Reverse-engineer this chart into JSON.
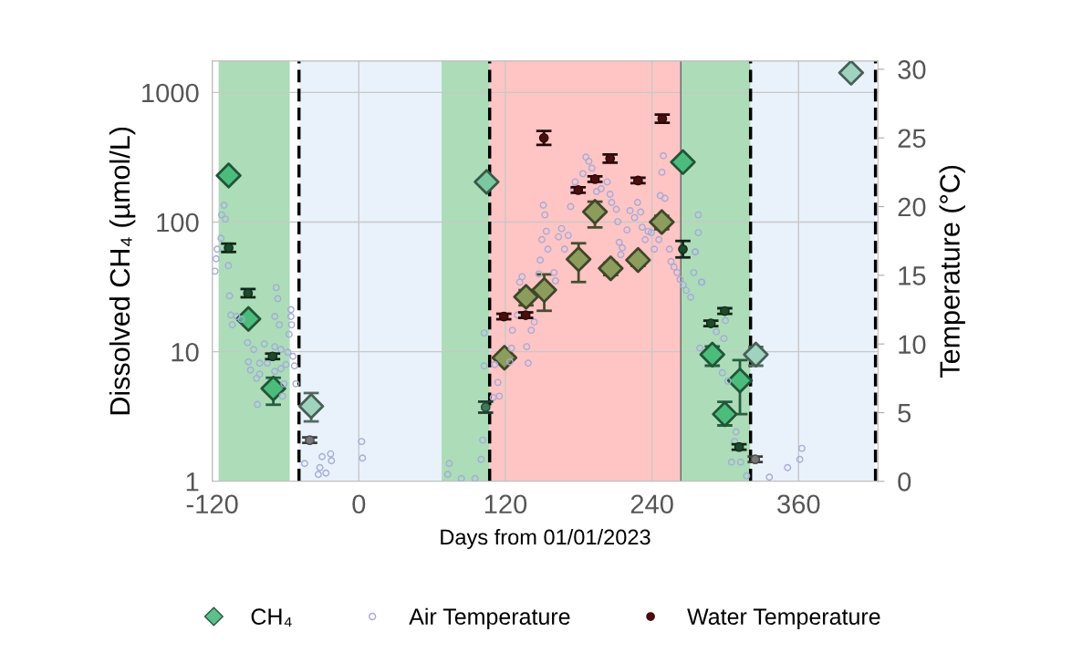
{
  "chart_data": {
    "type": "scatter",
    "xlabel": "Days from 01/01/2023",
    "ylabel": "Dissolved CH₄ (µmol/L)",
    "y2label": "Temperature (°C)",
    "xlim": [
      -120,
      425
    ],
    "xticks": [
      -120,
      0,
      120,
      240,
      360
    ],
    "ylim": [
      1,
      1750
    ],
    "yticks": [
      1,
      10,
      100,
      1000
    ],
    "log": "y",
    "y2lim": [
      0,
      30.6
    ],
    "y2ticks": [
      0,
      5,
      10,
      15,
      20,
      25,
      30
    ],
    "grid": true,
    "legend": "bottom",
    "bands": [
      {
        "axis": "x",
        "from": -114.8,
        "to": -56.6,
        "color": "#acdcb8"
      },
      {
        "axis": "x",
        "from": -49,
        "to": 107.1,
        "color": "#e9f1fb"
      },
      {
        "axis": "x",
        "from": 67.8,
        "to": 107.1,
        "color": "#acdcb8"
      },
      {
        "axis": "x",
        "from": 107.1,
        "to": 263.6,
        "color": "#ffc4c4"
      },
      {
        "axis": "x",
        "from": 263.6,
        "to": 320.7,
        "color": "#acdcb8"
      },
      {
        "axis": "x",
        "from": 320.7,
        "to": 423,
        "color": "#e9f1fb"
      }
    ],
    "ref_lines": [
      {
        "axis": "x",
        "value": -49,
        "color": "#000000",
        "line_style": "dashed"
      },
      {
        "axis": "x",
        "value": 107.1,
        "color": "#000000",
        "line_style": "dashed"
      },
      {
        "axis": "x",
        "value": 263.6,
        "color": "#666666",
        "line_style": "solid"
      },
      {
        "axis": "x",
        "value": 320.7,
        "color": "#000000",
        "line_style": "dashed"
      },
      {
        "axis": "x",
        "value": 423,
        "color": "#000000",
        "line_style": "dashed"
      }
    ],
    "series": [
      {
        "name": "Air Temperature",
        "axis": "y2",
        "marker": "circle",
        "color": "#a3acd9",
        "x": [
          -110.3,
          -112.3,
          -109.3,
          -112.8,
          -116,
          -116.8,
          -117.8,
          -106.8,
          -105.8,
          -104.8,
          -99.9,
          -96.2,
          -103.6,
          -67.6,
          -66.3,
          -68.8,
          -65.1,
          -55.6,
          -55.6,
          -55.1,
          -57.1,
          -91.1,
          -86.1,
          -77.4,
          -68.8,
          -63.8,
          -58.1,
          -90.4,
          -81.2,
          -75.0,
          -63.8,
          -59.6,
          -53.9,
          -52.7,
          -88.7,
          -81.2,
          -83.7,
          -68.8,
          -61.3,
          -51.5,
          -83,
          -62.5,
          2.3,
          3.0,
          -23.1,
          -30.1,
          -22.4,
          -31.9,
          -26.9,
          -33.2,
          -44.4,
          102.6,
          102.6,
          101.4,
          100.1,
          74.0,
          72.8,
          83.9,
          95.1,
          110,
          115,
          113.8,
          111.3,
          123.7,
          125,
          125.7,
          129.9,
          131.7,
          133.7,
          137.4,
          138.6,
          141.1,
          143.6,
          147.3,
          148.5,
          151,
          152.3,
          149.8,
          153.5,
          154.8,
          159.8,
          161,
          163.5,
          166,
          168.4,
          171.4,
          173.4,
          175.9,
          177.1,
          183.4,
          185.9,
          188.3,
          190.8,
          194.6,
          198.3,
          203.3,
          205.7,
          207,
          210.8,
          212,
          213.2,
          215.7,
          214.5,
          219.5,
          222,
          225.7,
          228.2,
          230.7,
          232,
          234.4,
          236.9,
          239.4,
          241.9,
          245.6,
          246.8,
          249.3,
          248.1,
          250.6,
          254.3,
          255.6,
          258,
          260.5,
          263,
          265.5,
          268,
          271.7,
          277.9,
          277.9,
          275.5,
          274.2,
          280.5,
          279.2,
          275.3,
          280.8,
          300.1,
          298.9,
          292.7,
          297.6,
          302.1,
          308.8,
          307.6,
          305.1,
          312.6,
          317.5,
          336.1,
          351,
          361,
          362.7
        ],
        "values": [
          20.1,
          19.4,
          19.1,
          17.7,
          16.9,
          16.2,
          15.3,
          15.7,
          13.5,
          12.1,
          12.0,
          11.8,
          11.4,
          14.1,
          13.3,
          12.0,
          11.4,
          12.5,
          12.0,
          11.4,
          10.7,
          10.1,
          9.6,
          10.0,
          9.8,
          9.6,
          9.4,
          8.7,
          8.6,
          8.6,
          8.2,
          8.5,
          9.1,
          8.4,
          8.1,
          7.8,
          7.5,
          8.0,
          7.1,
          7.1,
          5.6,
          6.2,
          2.9,
          1.7,
          2.0,
          1.8,
          1.5,
          1.0,
          0.6,
          0.5,
          1.3,
          8.4,
          10.8,
          3.0,
          1.6,
          1.3,
          0.5,
          0.2,
          0.2,
          6.1,
          6.2,
          7.2,
          8.5,
          8.7,
          9.7,
          11.0,
          12.1,
          14.5,
          14.9,
          9.8,
          8.6,
          11.0,
          11.6,
          15.1,
          16.1,
          20.1,
          19.4,
          17.6,
          18.2,
          16.9,
          15.2,
          14.6,
          17.8,
          18.4,
          16.9,
          17.9,
          20.0,
          21.3,
          21.8,
          22.4,
          23.6,
          23.3,
          22.8,
          21.1,
          21.3,
          21.8,
          20.9,
          20.3,
          19.8,
          18.9,
          17.4,
          17.0,
          16.5,
          18.3,
          19.7,
          19.2,
          20.3,
          19.6,
          18.5,
          17.6,
          18.2,
          18.1,
          16.9,
          17.6,
          20.8,
          23.7,
          22.5,
          20.6,
          16.9,
          16.0,
          15.6,
          15.2,
          14.7,
          14.3,
          13.9,
          13.4,
          19.4,
          18.1,
          16.7,
          15.2,
          14.5,
          9.7,
          16.7,
          14.5,
          11.7,
          10.4,
          10.9,
          7.9,
          7.3,
          3.6,
          2.9,
          1.4,
          1.4,
          0.4,
          0.3,
          1.0,
          1.6,
          2.4
        ]
      },
      {
        "name": "Water Temperature",
        "axis": "y2",
        "marker": "circle",
        "color": "#4a0e0e",
        "colors": [
          "#1e4a2c",
          "#1e4a2c",
          "#1e4a2c",
          "#777777",
          "#3e7a5a",
          "#4a0e0e",
          "#4a0e0e",
          "#4a0e0e",
          "#4a0e0e",
          "#4a0e0e",
          "#4a0e0e",
          "#4a0e0e",
          "#4a0e0e",
          "#1e4a2c",
          "#1e4a2c",
          "#1e4a2c",
          "#1e4a2c",
          "#777777"
        ],
        "x": [
          -106.6,
          -90.7,
          -70.6,
          -40.2,
          103.8,
          118.7,
          136.6,
          151.5,
          179.6,
          193.3,
          205.7,
          228.6,
          248.4,
          265.3,
          288.2,
          299.6,
          311.3,
          324.5
        ],
        "values": [
          17.0,
          13.7,
          9.1,
          3.0,
          5.4,
          12.0,
          12.1,
          25.0,
          21.2,
          22.0,
          23.5,
          21.9,
          26.4,
          16.9,
          11.5,
          12.4,
          2.5,
          1.6
        ],
        "errors": [
          0.3,
          0.3,
          0.2,
          0.2,
          0.4,
          0.2,
          0.2,
          0.5,
          0.2,
          0.2,
          0.3,
          0.2,
          0.3,
          0.6,
          0.2,
          0.2,
          0.2,
          0.2
        ]
      },
      {
        "name": "CH₄",
        "marker": "diamond",
        "color": "#5cc08a",
        "colors": [
          "#4cbc7c",
          "#4cbc7c",
          "#4cbc7c",
          "#9fd3c0",
          "#7cc8a0",
          "#8c9c5c",
          "#8c9c5c",
          "#8c9c5c",
          "#8c9c5c",
          "#8c9c5c",
          "#8c9c5c",
          "#8c9c5c",
          "#8c9c5c",
          "#4cbc7c",
          "#4cbc7c",
          "#4cbc7c",
          "#4cbc7c",
          "#9fd3c0",
          "#9fd3c0"
        ],
        "x": [
          -106.6,
          -90.4,
          -70,
          -39,
          104.6,
          119.2,
          136.9,
          151.8,
          179.9,
          193.3,
          206.2,
          228.6,
          248,
          265.3,
          289.4,
          299.6,
          312,
          325,
          403
        ],
        "values": [
          229,
          17.9,
          5.2,
          3.8,
          204,
          9.0,
          26.5,
          29.9,
          51.7,
          120,
          44,
          51,
          100,
          290,
          9.5,
          3.3,
          6.0,
          9.5,
          1419
        ],
        "errors": [
          null,
          null,
          [
            3.9,
            6.3
          ],
          [
            2.9,
            4.8
          ],
          null,
          null,
          [
            22.8,
            29.9
          ],
          [
            20.7,
            39.5
          ],
          [
            34.5,
            68.7
          ],
          [
            91,
            144
          ],
          [
            39,
            48.5
          ],
          [
            45.9,
            55.4
          ],
          [
            88,
            112
          ],
          null,
          [
            7.8,
            11
          ],
          [
            2.7,
            4.1
          ],
          [
            3.3,
            8.6
          ],
          [
            7.8,
            10.9
          ],
          null
        ]
      }
    ]
  }
}
